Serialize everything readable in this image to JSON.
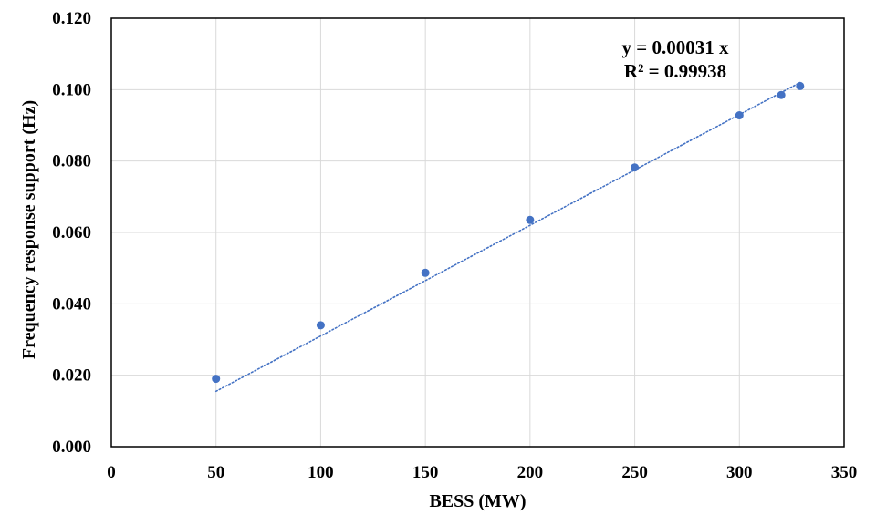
{
  "chart_data": {
    "type": "scatter",
    "xlabel": "BESS (MW)",
    "ylabel": "Frequency response support (Hz)",
    "xlim": [
      0,
      350
    ],
    "ylim": [
      0,
      0.12
    ],
    "x_ticks": [
      "0",
      "50",
      "100",
      "150",
      "200",
      "250",
      "300",
      "350"
    ],
    "y_ticks": [
      "0.000",
      "0.020",
      "0.040",
      "0.060",
      "0.080",
      "0.100",
      "0.120"
    ],
    "grid": true,
    "series": [
      {
        "marker_color": "#4472c4",
        "points": [
          {
            "x": 50,
            "y": 0.019
          },
          {
            "x": 100,
            "y": 0.034
          },
          {
            "x": 150,
            "y": 0.0487
          },
          {
            "x": 200,
            "y": 0.0635
          },
          {
            "x": 250,
            "y": 0.0782
          },
          {
            "x": 300,
            "y": 0.0928
          },
          {
            "x": 320,
            "y": 0.0985
          },
          {
            "x": 329,
            "y": 0.101
          }
        ]
      }
    ],
    "trendline": {
      "style": "dotted",
      "color": "#4472c4",
      "slope": 0.00031,
      "x_from": 50,
      "x_to": 329
    },
    "annotations": [
      {
        "text": "y = 0.00031 x"
      },
      {
        "text": "R² = 0.99938"
      }
    ]
  }
}
